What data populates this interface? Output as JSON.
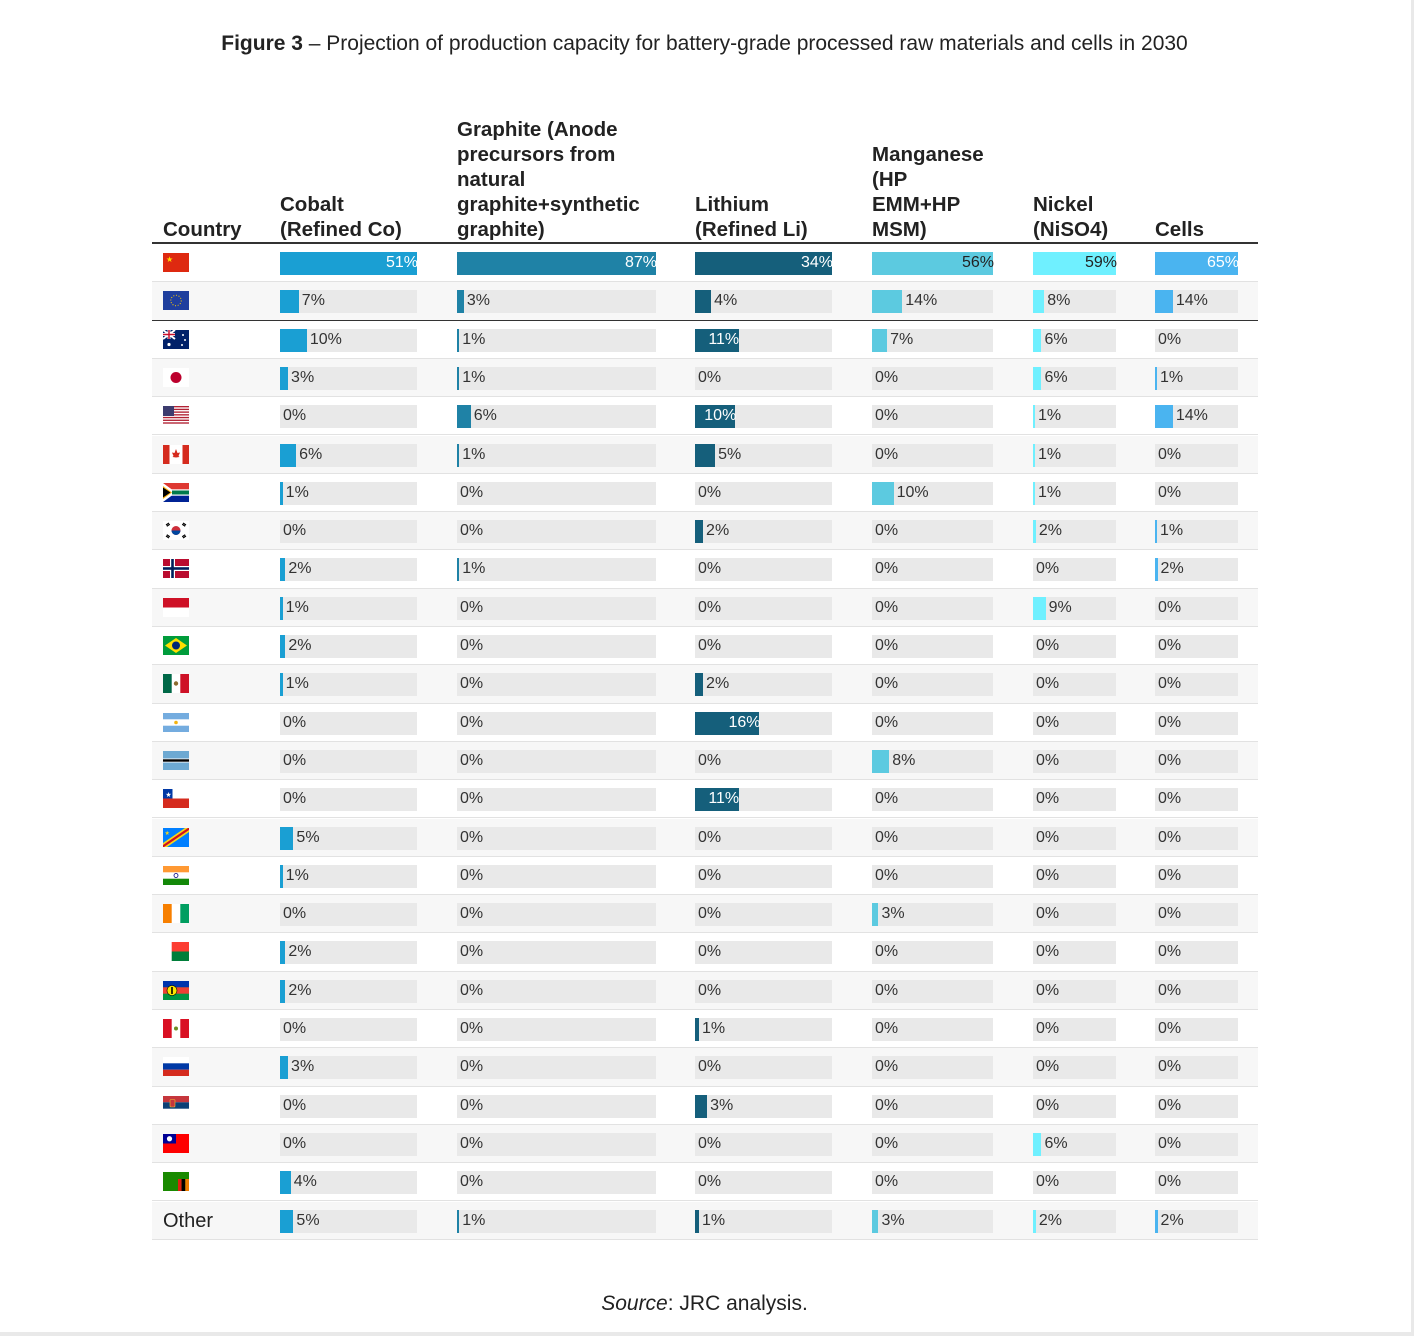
{
  "figure": {
    "label": "Figure 3",
    "title": " – Projection of production capacity for battery-grade processed raw materials and cells in 2030"
  },
  "source": {
    "label": "Source",
    "text": ": JRC analysis."
  },
  "colors": {
    "cobalt": "#1a9fd3",
    "graphite": "#1f82a6",
    "lithium": "#155f7b",
    "manganese": "#5ccae0",
    "nickel": "#6ff0ff",
    "cells": "#4ab4f0",
    "track": "#e9e9e9"
  },
  "chart_data": {
    "type": "table",
    "title": "Projection of production capacity for battery-grade processed raw materials and cells in 2030",
    "unit": "% share",
    "columns": [
      {
        "key": "country",
        "label": "Country"
      },
      {
        "key": "cobalt",
        "label": "Cobalt (Refined Co)"
      },
      {
        "key": "graphite",
        "label": "Graphite (Anode precursors from natural graphite+synthetic graphite)"
      },
      {
        "key": "lithium",
        "label": "Lithium (Refined Li)"
      },
      {
        "key": "manganese",
        "label": "Manganese (HP EMM+HP MSM)"
      },
      {
        "key": "nickel",
        "label": "Nickel (NiSO4)"
      },
      {
        "key": "cells",
        "label": "Cells"
      }
    ],
    "header_lines": {
      "country": [
        "Country"
      ],
      "cobalt": [
        "Cobalt",
        "(Refined Co)"
      ],
      "graphite": [
        "Graphite (Anode",
        "precursors from",
        "natural",
        "graphite+synthetic",
        "graphite)"
      ],
      "lithium": [
        "Lithium",
        "(Refined Li)"
      ],
      "manganese": [
        "Manganese",
        "(HP",
        "EMM+HP",
        "MSM)"
      ],
      "nickel": [
        "Nickel",
        "(NiSO4)"
      ],
      "cells": [
        "Cells"
      ]
    },
    "rows": [
      {
        "flag": "china-flag-icon",
        "label": "",
        "values": [
          51,
          87,
          34,
          56,
          59,
          65
        ]
      },
      {
        "flag": "eu-flag-icon",
        "label": "",
        "values": [
          7,
          3,
          4,
          14,
          8,
          14
        ]
      },
      {
        "flag": "australia-flag-icon",
        "label": "",
        "values": [
          10,
          1,
          11,
          7,
          6,
          0
        ]
      },
      {
        "flag": "japan-flag-icon",
        "label": "",
        "values": [
          3,
          1,
          0,
          0,
          6,
          1
        ]
      },
      {
        "flag": "usa-flag-icon",
        "label": "",
        "values": [
          0,
          6,
          10,
          0,
          1,
          14
        ]
      },
      {
        "flag": "canada-flag-icon",
        "label": "",
        "values": [
          6,
          1,
          5,
          0,
          1,
          0
        ]
      },
      {
        "flag": "south-africa-flag-icon",
        "label": "",
        "values": [
          1,
          0,
          0,
          10,
          1,
          0
        ]
      },
      {
        "flag": "south-korea-flag-icon",
        "label": "",
        "values": [
          0,
          0,
          2,
          0,
          2,
          1
        ]
      },
      {
        "flag": "norway-flag-icon",
        "label": "",
        "values": [
          2,
          1,
          0,
          0,
          0,
          2
        ]
      },
      {
        "flag": "indonesia-flag-icon",
        "label": "",
        "values": [
          1,
          0,
          0,
          0,
          9,
          0
        ]
      },
      {
        "flag": "brazil-flag-icon",
        "label": "",
        "values": [
          2,
          0,
          0,
          0,
          0,
          0
        ]
      },
      {
        "flag": "mexico-flag-icon",
        "label": "",
        "values": [
          1,
          0,
          2,
          0,
          0,
          0
        ]
      },
      {
        "flag": "argentina-flag-icon",
        "label": "",
        "values": [
          0,
          0,
          16,
          0,
          0,
          0
        ]
      },
      {
        "flag": "botswana-flag-icon",
        "label": "",
        "values": [
          0,
          0,
          0,
          8,
          0,
          0
        ]
      },
      {
        "flag": "chile-flag-icon",
        "label": "",
        "values": [
          0,
          0,
          11,
          0,
          0,
          0
        ]
      },
      {
        "flag": "dr-congo-flag-icon",
        "label": "",
        "values": [
          5,
          0,
          0,
          0,
          0,
          0
        ]
      },
      {
        "flag": "india-flag-icon",
        "label": "",
        "values": [
          1,
          0,
          0,
          0,
          0,
          0
        ]
      },
      {
        "flag": "ivory-coast-flag-icon",
        "label": "",
        "values": [
          0,
          0,
          0,
          3,
          0,
          0
        ]
      },
      {
        "flag": "madagascar-flag-icon",
        "label": "",
        "values": [
          2,
          0,
          0,
          0,
          0,
          0
        ]
      },
      {
        "flag": "new-caledonia-flag-icon",
        "label": "",
        "values": [
          2,
          0,
          0,
          0,
          0,
          0
        ]
      },
      {
        "flag": "peru-flag-icon",
        "label": "",
        "values": [
          0,
          0,
          1,
          0,
          0,
          0
        ]
      },
      {
        "flag": "russia-flag-icon",
        "label": "",
        "values": [
          3,
          0,
          0,
          0,
          0,
          0
        ]
      },
      {
        "flag": "serbia-flag-icon",
        "label": "",
        "values": [
          0,
          0,
          3,
          0,
          0,
          0
        ]
      },
      {
        "flag": "taiwan-flag-icon",
        "label": "",
        "values": [
          0,
          0,
          0,
          0,
          6,
          0
        ]
      },
      {
        "flag": "zambia-flag-icon",
        "label": "",
        "values": [
          4,
          0,
          0,
          0,
          0,
          0
        ]
      },
      {
        "flag": "",
        "label": "Other",
        "values": [
          5,
          1,
          1,
          3,
          2,
          2
        ]
      }
    ]
  }
}
